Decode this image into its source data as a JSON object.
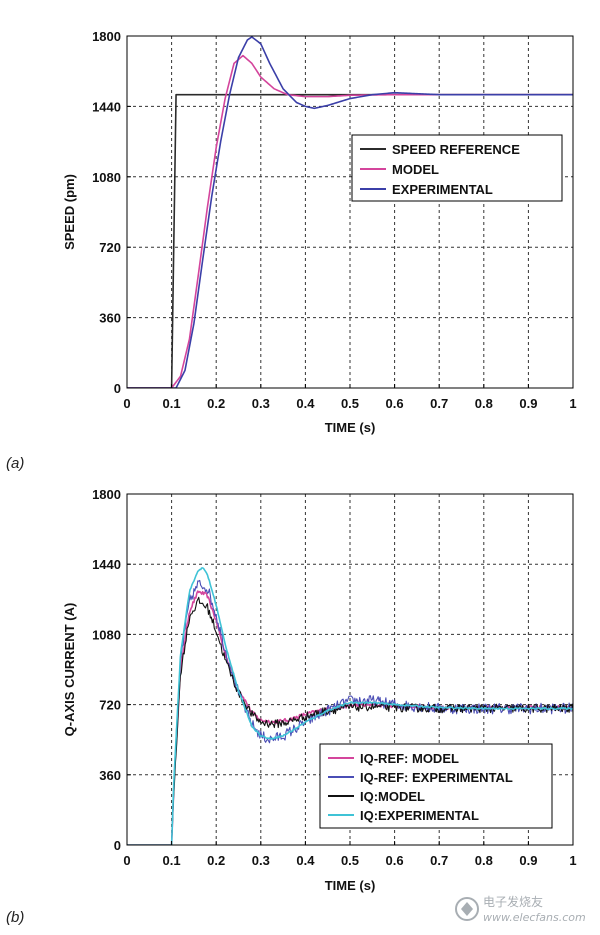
{
  "chart_data": [
    {
      "type": "line",
      "panel_label": "(a)",
      "ylabel": "SPEED (pm)",
      "xlabel": "TIME (s)",
      "xlim": [
        0,
        1
      ],
      "ylim": [
        0,
        1800
      ],
      "x_ticks": [
        0,
        0.1,
        0.2,
        0.3,
        0.4,
        0.5,
        0.6,
        0.7,
        0.8,
        0.9,
        1
      ],
      "x_tick_labels": [
        "0",
        "0.1",
        "0.2",
        "0.3",
        "0.4",
        "0.5",
        "0.6",
        "0.7",
        "0.8",
        "0.9",
        "1"
      ],
      "y_ticks": [
        0,
        360,
        720,
        1080,
        1440,
        1800
      ],
      "y_tick_labels": [
        "0",
        "360",
        "720",
        "1080",
        "1440",
        "1800"
      ],
      "grid": true,
      "legend_position": "center-right",
      "series": [
        {
          "name": "SPEED REFERENCE",
          "color": "#2b2b2b",
          "x": [
            0,
            0.1,
            0.11,
            1
          ],
          "y": [
            0,
            0,
            1500,
            1500
          ]
        },
        {
          "name": "MODEL",
          "color": "#d4459c",
          "x": [
            0,
            0.1,
            0.12,
            0.14,
            0.16,
            0.18,
            0.2,
            0.22,
            0.24,
            0.26,
            0.28,
            0.3,
            0.33,
            0.36,
            0.4,
            0.45,
            0.5,
            0.6,
            0.8,
            1
          ],
          "y": [
            0,
            0,
            60,
            250,
            580,
            920,
            1230,
            1480,
            1660,
            1700,
            1660,
            1590,
            1530,
            1500,
            1490,
            1490,
            1497,
            1500,
            1500,
            1500
          ]
        },
        {
          "name": "EXPERIMENTAL",
          "color": "#3b3fa8",
          "x": [
            0,
            0.11,
            0.13,
            0.15,
            0.17,
            0.19,
            0.21,
            0.23,
            0.25,
            0.27,
            0.28,
            0.3,
            0.32,
            0.35,
            0.38,
            0.4,
            0.42,
            0.45,
            0.5,
            0.55,
            0.6,
            0.7,
            0.8,
            1
          ],
          "y": [
            0,
            0,
            90,
            330,
            660,
            980,
            1260,
            1500,
            1690,
            1780,
            1795,
            1760,
            1660,
            1530,
            1460,
            1440,
            1430,
            1445,
            1480,
            1500,
            1510,
            1500,
            1500,
            1500
          ]
        }
      ]
    },
    {
      "type": "line",
      "panel_label": "(b)",
      "ylabel": "Q-AXIS CURRENT (A)",
      "xlabel": "TIME (s)",
      "xlim": [
        0,
        1
      ],
      "ylim": [
        0,
        1800
      ],
      "x_ticks": [
        0,
        0.1,
        0.2,
        0.3,
        0.4,
        0.5,
        0.6,
        0.7,
        0.8,
        0.9,
        1
      ],
      "x_tick_labels": [
        "0",
        "0.1",
        "0.2",
        "0.3",
        "0.4",
        "0.5",
        "0.6",
        "0.7",
        "0.8",
        "0.9",
        "1"
      ],
      "y_ticks": [
        0,
        360,
        720,
        1080,
        1440,
        1800
      ],
      "y_tick_labels": [
        "0",
        "360",
        "720",
        "1080",
        "1440",
        "1800"
      ],
      "grid": true,
      "legend_position": "bottom-right",
      "series": [
        {
          "name": "IQ-REF: MODEL",
          "color": "#d4459c",
          "noise": 10,
          "x": [
            0,
            0.1,
            0.105,
            0.12,
            0.14,
            0.16,
            0.18,
            0.2,
            0.22,
            0.25,
            0.28,
            0.3,
            0.33,
            0.36,
            0.4,
            0.45,
            0.5,
            0.55,
            0.6,
            0.7,
            0.8,
            1
          ],
          "y": [
            0,
            0,
            300,
            900,
            1200,
            1300,
            1280,
            1150,
            980,
            800,
            680,
            640,
            630,
            640,
            670,
            700,
            715,
            720,
            715,
            705,
            705,
            705
          ]
        },
        {
          "name": "IQ-REF: EXPERIMENTAL",
          "color": "#4a4db5",
          "noise": 28,
          "x": [
            0,
            0.1,
            0.105,
            0.12,
            0.14,
            0.16,
            0.18,
            0.2,
            0.22,
            0.25,
            0.28,
            0.3,
            0.32,
            0.35,
            0.38,
            0.4,
            0.45,
            0.5,
            0.55,
            0.6,
            0.7,
            0.8,
            1
          ],
          "y": [
            0,
            0,
            320,
            950,
            1250,
            1340,
            1320,
            1180,
            1000,
            780,
            620,
            560,
            540,
            560,
            600,
            630,
            690,
            740,
            740,
            720,
            700,
            700,
            700
          ]
        },
        {
          "name": "IQ:MODEL",
          "color": "#111111",
          "noise": 22,
          "x": [
            0,
            0.1,
            0.105,
            0.12,
            0.14,
            0.16,
            0.18,
            0.2,
            0.22,
            0.25,
            0.28,
            0.3,
            0.33,
            0.36,
            0.4,
            0.45,
            0.5,
            0.55,
            0.6,
            0.7,
            0.8,
            1
          ],
          "y": [
            0,
            0,
            280,
            880,
            1170,
            1250,
            1220,
            1100,
            950,
            780,
            670,
            630,
            620,
            630,
            660,
            690,
            705,
            710,
            705,
            700,
            700,
            700
          ]
        },
        {
          "name": "IQ:EXPERIMENTAL",
          "color": "#3fc3d6",
          "noise": 4,
          "x": [
            0,
            0.1,
            0.105,
            0.12,
            0.14,
            0.16,
            0.17,
            0.18,
            0.2,
            0.22,
            0.25,
            0.28,
            0.3,
            0.32,
            0.35,
            0.38,
            0.4,
            0.45,
            0.5,
            0.55,
            0.6,
            0.7,
            0.8,
            1
          ],
          "y": [
            0,
            0,
            330,
            980,
            1300,
            1410,
            1420,
            1390,
            1230,
            1030,
            790,
            610,
            560,
            545,
            560,
            600,
            630,
            690,
            730,
            730,
            720,
            705,
            700,
            700
          ]
        }
      ]
    }
  ],
  "watermark": {
    "site_name": "电子发烧友",
    "url": "www.elecfans.com"
  },
  "colors": {
    "grid": "#333333",
    "background": "#ffffff",
    "axis": "#000000"
  }
}
